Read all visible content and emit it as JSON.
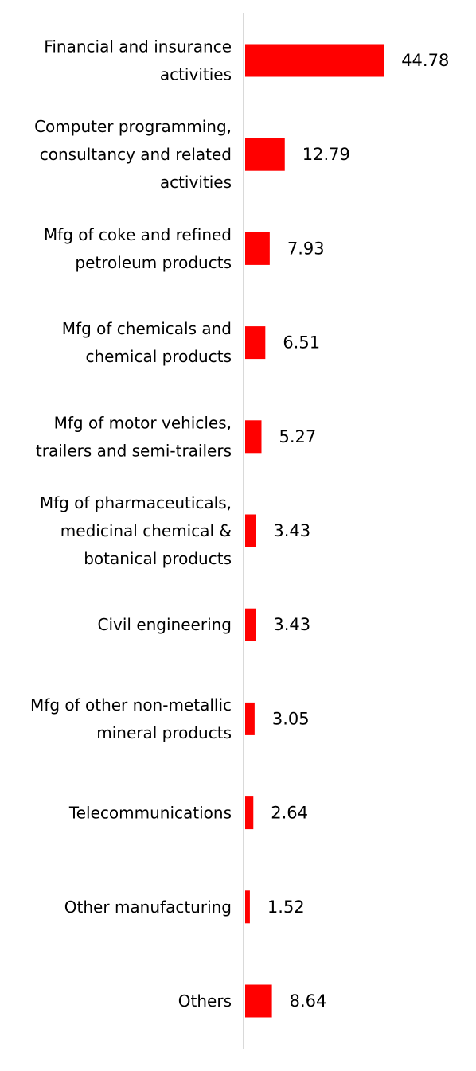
{
  "chart_data": {
    "type": "bar",
    "orientation": "horizontal",
    "categories": [
      [
        "Financial and insurance",
        "activities"
      ],
      [
        "Computer programming,",
        "consultancy and related",
        "activities"
      ],
      [
        "Mfg of coke and refined",
        "petroleum products"
      ],
      [
        "Mfg of chemicals and",
        "chemical products"
      ],
      [
        "Mfg of motor vehicles,",
        "trailers and semi-trailers"
      ],
      [
        "Mfg of pharmaceuticals,",
        "medicinal chemical &",
        "botanical products"
      ],
      [
        "Civil engineering"
      ],
      [
        "Mfg of other non-metallic",
        "mineral products"
      ],
      [
        "Telecommunications"
      ],
      [
        "Other manufacturing"
      ],
      [
        "Others"
      ]
    ],
    "values": [
      44.78,
      12.79,
      7.93,
      6.51,
      5.27,
      3.43,
      3.43,
      3.05,
      2.64,
      1.52,
      8.64
    ],
    "value_labels": [
      "44.78",
      "12.79",
      "7.93",
      "6.51",
      "5.27",
      "3.43",
      "3.43",
      "3.05",
      "2.64",
      "1.52",
      "8.64"
    ],
    "bar_color": "#ff0000",
    "axis_color": "#d9d9d9",
    "title": "",
    "xlabel": "",
    "ylabel": "",
    "xlim": [
      0,
      45
    ],
    "grid": false,
    "legend": false
  }
}
